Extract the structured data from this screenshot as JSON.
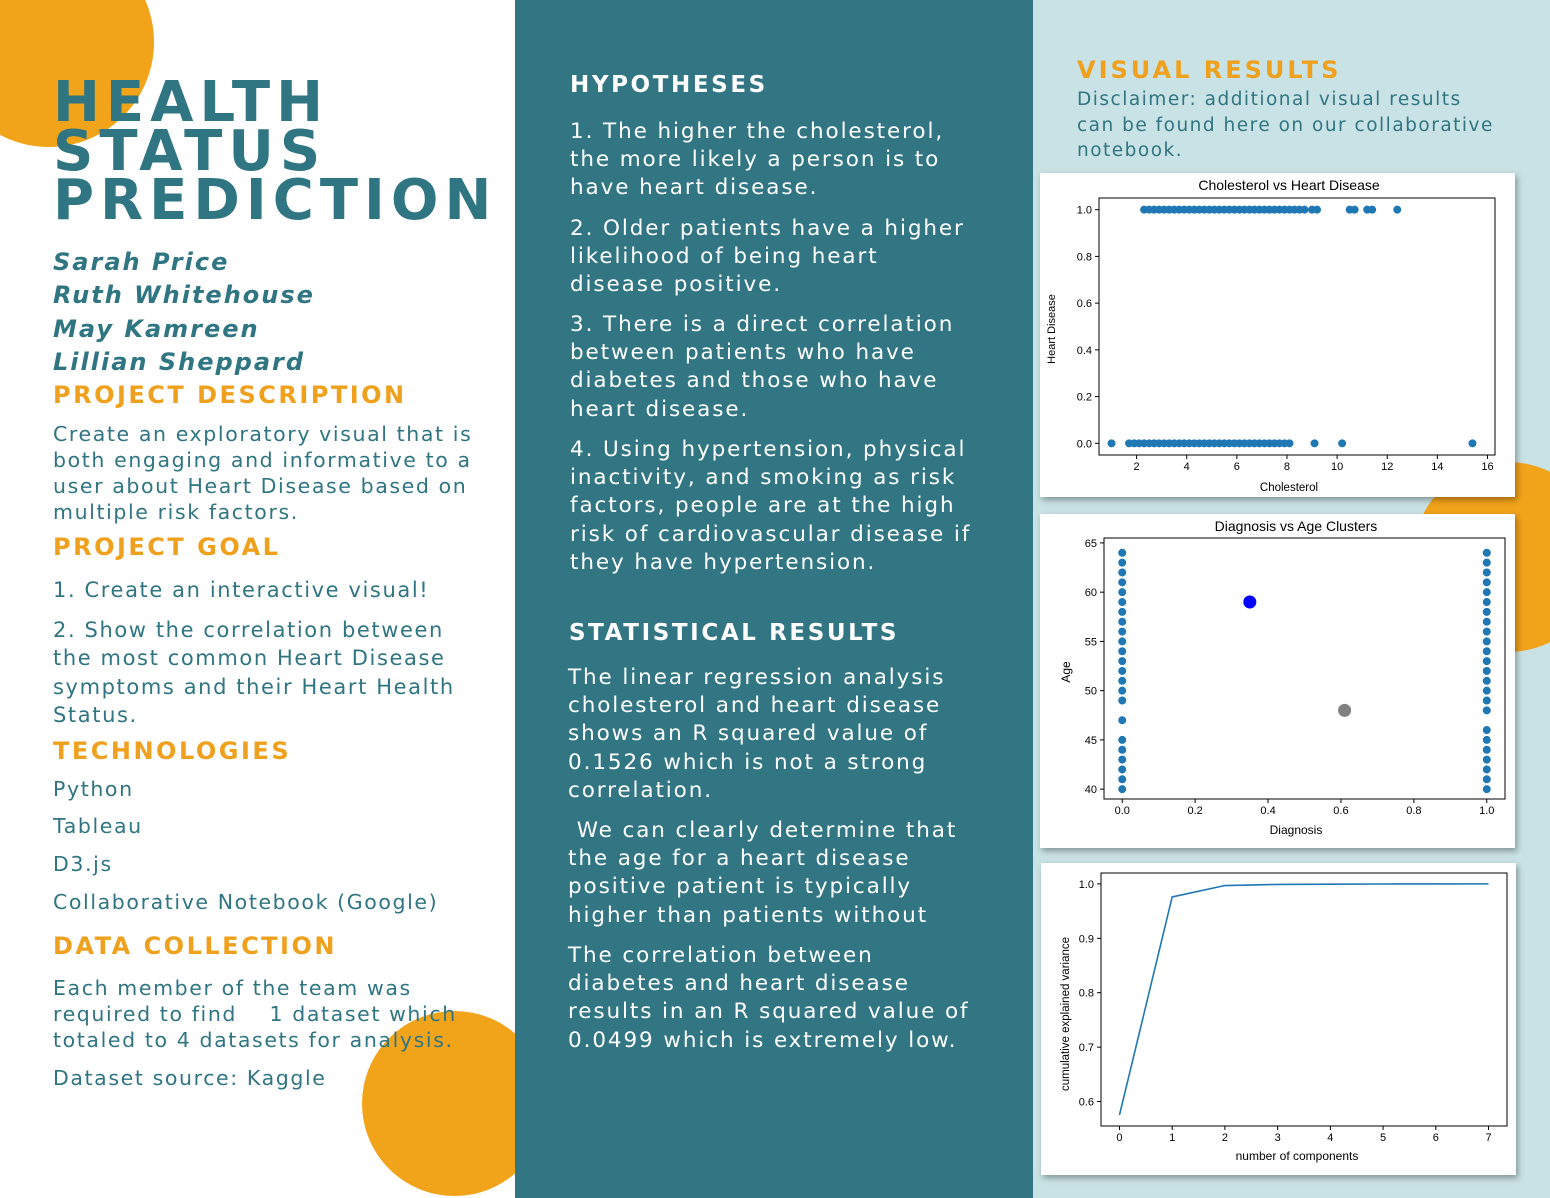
{
  "left": {
    "title_lines": [
      "HEALTH",
      "STATUS",
      "PREDICTION"
    ],
    "authors": [
      "Sarah Price",
      "Ruth Whitehouse",
      "May Kamreen",
      "Lillian Sheppard"
    ],
    "project_description": {
      "heading": "PROJECT DESCRIPTION",
      "text": "Create an exploratory visual that is both engaging and informative to a user about Heart Disease based on multiple risk factors."
    },
    "project_goal": {
      "heading": "PROJECT GOAL",
      "items": [
        "1. Create an interactive visual!",
        "2. Show the correlation between the most common Heart Disease symptoms and their Heart Health Status."
      ]
    },
    "technologies": {
      "heading": "TECHNOLOGIES",
      "items": [
        "Python",
        "Tableau",
        "D3.js",
        "Collaborative Notebook (Google)"
      ]
    },
    "data_collection": {
      "heading": "DATA COLLECTION",
      "text": "Each member of the team was required to find    1 dataset which totaled to 4 datasets for analysis.",
      "source": "Dataset source: Kaggle"
    }
  },
  "middle": {
    "hypotheses": {
      "heading": "HYPOTHESES",
      "items": [
        "1. The higher the cholesterol, the more likely a person is to have heart disease.",
        "2. Older patients have a higher likelihood of being heart disease positive.",
        "3. There is a direct correlation between patients who have diabetes and those who have heart disease.",
        "4. Using hypertension, physical inactivity, and smoking as risk factors, people are at the high risk of cardiovascular disease if they have hypertension."
      ]
    },
    "statistical_results": {
      "heading": "STATISTICAL RESULTS",
      "items": [
        "The linear regression analysis cholesterol and heart disease shows an R squared value of 0.1526 which is not a strong correlation.",
        " We can clearly determine that the age for a heart disease positive patient is typically higher than patients without",
        "The correlation between diabetes and heart disease results in an R squared value of 0.0499 which is extremely low."
      ]
    }
  },
  "right": {
    "heading": "VISUAL RESULTS",
    "disclaimer": "Disclaimer: additional visual results can be found here on our collaborative notebook."
  },
  "colors": {
    "teal": "#317682",
    "orange": "#f1a31a",
    "light_blue": "#c9e2e5",
    "point_blue": "#1f77b4"
  },
  "chart_data": [
    {
      "type": "scatter",
      "title": "Cholesterol vs Heart Disease",
      "xlabel": "Cholesterol",
      "ylabel": "Heart Disease",
      "xlim": [
        0.5,
        16.3
      ],
      "ylim": [
        -0.05,
        1.05
      ],
      "xticks": [
        2,
        4,
        6,
        8,
        10,
        12,
        14,
        16
      ],
      "yticks": [
        0.0,
        0.2,
        0.4,
        0.6,
        0.8,
        1.0
      ],
      "series": [
        {
          "values_y1_x": [
            2.3,
            2.5,
            2.7,
            2.9,
            3.1,
            3.3,
            3.5,
            3.7,
            3.9,
            4.1,
            4.3,
            4.5,
            4.7,
            4.9,
            5.1,
            5.3,
            5.5,
            5.7,
            5.9,
            6.1,
            6.3,
            6.5,
            6.7,
            6.9,
            7.1,
            7.3,
            7.5,
            7.7,
            7.9,
            8.1,
            8.3,
            8.5,
            8.7,
            9.0,
            9.2,
            10.5,
            10.7,
            11.2,
            11.4,
            12.4
          ],
          "values_y0_x": [
            1.0,
            1.7,
            1.9,
            2.1,
            2.3,
            2.5,
            2.7,
            2.9,
            3.1,
            3.3,
            3.5,
            3.7,
            3.9,
            4.1,
            4.3,
            4.5,
            4.7,
            4.9,
            5.1,
            5.3,
            5.5,
            5.7,
            5.9,
            6.1,
            6.3,
            6.5,
            6.7,
            6.9,
            7.1,
            7.3,
            7.5,
            7.7,
            7.9,
            8.1,
            9.1,
            10.2,
            15.4
          ]
        }
      ]
    },
    {
      "type": "scatter",
      "title": "Diagnosis vs Age Clusters",
      "xlabel": "Diagnosis",
      "ylabel": "Age",
      "xlim": [
        -0.05,
        1.05
      ],
      "ylim": [
        39,
        65.5
      ],
      "xticks": [
        0.0,
        0.2,
        0.4,
        0.6,
        0.8,
        1.0
      ],
      "yticks": [
        40,
        45,
        50,
        55,
        60,
        65
      ],
      "series": [
        {
          "diagnosis_0_ages": [
            40,
            41,
            42,
            43,
            44,
            45,
            47,
            49,
            50,
            51,
            52,
            53,
            54,
            55,
            56,
            57,
            58,
            59,
            60,
            61,
            62,
            63,
            64
          ],
          "diagnosis_1_ages": [
            40,
            41,
            42,
            43,
            44,
            45,
            46,
            48,
            49,
            50,
            51,
            52,
            53,
            54,
            55,
            56,
            57,
            58,
            59,
            60,
            61,
            62,
            63,
            64
          ]
        }
      ],
      "centroids": [
        {
          "x": 0.35,
          "y": 59,
          "color": "#0000ff"
        },
        {
          "x": 0.61,
          "y": 48,
          "color": "#808080"
        }
      ]
    },
    {
      "type": "line",
      "title": "",
      "xlabel": "number of components",
      "ylabel": "cumulative explained variance",
      "xlim": [
        -0.35,
        7.35
      ],
      "ylim": [
        0.555,
        1.02
      ],
      "xticks": [
        0,
        1,
        2,
        3,
        4,
        5,
        6,
        7
      ],
      "yticks": [
        0.6,
        0.7,
        0.8,
        0.9,
        1.0
      ],
      "x": [
        0,
        1,
        2,
        3,
        4,
        5,
        6,
        7
      ],
      "values": [
        0.575,
        0.976,
        0.997,
        0.999,
        0.9995,
        0.9998,
        0.9999,
        1.0
      ]
    }
  ]
}
